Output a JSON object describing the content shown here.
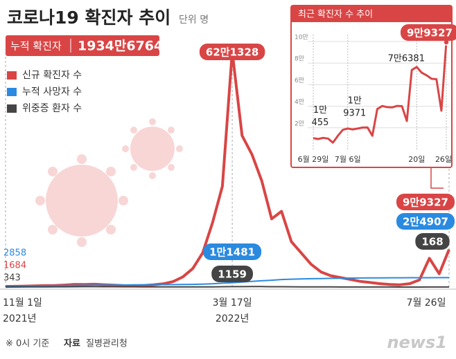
{
  "header": {
    "title": "코로나19 확진자 추이",
    "unit": "단위 명",
    "total_label": "누적 확진자",
    "total_value": "1934만6764"
  },
  "chart_data": [
    {
      "type": "line",
      "categories": [
        "11월 1일",
        null,
        null,
        null,
        null,
        null,
        null,
        null,
        null,
        null,
        null,
        null,
        null,
        null,
        null,
        null,
        null,
        null,
        null,
        null,
        null,
        null,
        null,
        "3월 17일",
        null,
        null,
        null,
        null,
        null,
        null,
        null,
        null,
        null,
        null,
        null,
        null,
        null,
        null,
        null,
        null,
        null,
        null,
        null,
        null,
        null,
        "7월 26일"
      ],
      "x_sublabels": [
        "2021년",
        null,
        null,
        null,
        null,
        null,
        null,
        null,
        null,
        null,
        null,
        null,
        null,
        null,
        null,
        null,
        null,
        null,
        null,
        null,
        null,
        null,
        null,
        "2022년",
        null,
        null,
        null,
        null,
        null,
        null,
        null,
        null,
        null,
        null,
        null,
        null,
        null,
        null,
        null,
        null,
        null,
        null,
        null,
        null,
        null,
        null
      ],
      "ylim": [
        0,
        630000
      ],
      "legend": "top-left",
      "series": [
        {
          "name": "신규 확진자 수",
          "color": "#d94545",
          "values": [
            1684,
            2000,
            2500,
            3100,
            3900,
            4100,
            5300,
            7100,
            7000,
            7400,
            6200,
            5000,
            3800,
            3500,
            4200,
            6100,
            8500,
            14500,
            27000,
            49000,
            90000,
            170000,
            266000,
            621328,
            400000,
            350000,
            280000,
            180000,
            200000,
            120000,
            90000,
            60000,
            40000,
            30000,
            25000,
            20000,
            15000,
            12000,
            9000,
            7000,
            6000,
            9000,
            19000,
            76000,
            35000,
            99327
          ],
          "value_labels": [
            "1684",
            null,
            null,
            null,
            null,
            null,
            null,
            null,
            null,
            null,
            null,
            null,
            null,
            null,
            null,
            null,
            null,
            null,
            null,
            null,
            null,
            null,
            null,
            "62만1328",
            null,
            null,
            null,
            null,
            null,
            null,
            null,
            null,
            null,
            null,
            null,
            null,
            null,
            null,
            null,
            null,
            null,
            null,
            null,
            null,
            null,
            "9만9327"
          ]
        },
        {
          "name": "누적 사망자 수",
          "color": "#2a8ae0",
          "values": [
            2858,
            3000,
            3187,
            3401,
            3658,
            3893,
            4130,
            4456,
            4776,
            5015,
            5245,
            5382,
            5563,
            5781,
            6000,
            6190,
            6350,
            6540,
            6772,
            7045,
            7600,
            8800,
            10140,
            11481,
            13100,
            14900,
            16600,
            18000,
            19900,
            20900,
            21600,
            22100,
            22500,
            23000,
            23400,
            23700,
            24000,
            24200,
            24300,
            24400,
            24500,
            24600,
            24650,
            24720,
            24800,
            24907
          ],
          "value_labels": [
            "2858",
            null,
            null,
            null,
            null,
            null,
            null,
            null,
            null,
            null,
            null,
            null,
            null,
            null,
            null,
            null,
            null,
            null,
            null,
            null,
            null,
            null,
            null,
            "1만1481",
            null,
            null,
            null,
            null,
            null,
            null,
            null,
            null,
            null,
            null,
            null,
            null,
            null,
            null,
            null,
            null,
            null,
            null,
            null,
            null,
            null,
            "2만4907"
          ]
        },
        {
          "name": "위중증 환자 수",
          "color": "#444444",
          "values": [
            343,
            400,
            500,
            550,
            600,
            700,
            800,
            900,
            1050,
            1100,
            1000,
            900,
            800,
            700,
            600,
            500,
            430,
            380,
            290,
            275,
            420,
            600,
            1000,
            1159,
            1100,
            1300,
            1200,
            1000,
            900,
            700,
            500,
            400,
            350,
            300,
            250,
            200,
            180,
            120,
            110,
            100,
            60,
            60,
            80,
            120,
            150,
            168
          ],
          "value_labels": [
            "343",
            null,
            null,
            null,
            null,
            null,
            null,
            null,
            null,
            null,
            null,
            null,
            null,
            null,
            null,
            null,
            null,
            null,
            null,
            null,
            null,
            null,
            null,
            "1159",
            null,
            null,
            null,
            null,
            null,
            null,
            null,
            null,
            null,
            null,
            null,
            null,
            null,
            null,
            null,
            null,
            null,
            null,
            null,
            null,
            null,
            "168"
          ]
        }
      ]
    },
    {
      "type": "line",
      "title": "최근 확진자 수 추이",
      "categories": [
        "6월 29일",
        null,
        null,
        null,
        null,
        null,
        null,
        "7월 6일",
        null,
        null,
        null,
        null,
        null,
        null,
        null,
        null,
        null,
        null,
        null,
        null,
        null,
        "20일",
        null,
        null,
        null,
        null,
        null,
        "26일"
      ],
      "ylim": [
        0,
        100000
      ],
      "yticks": [
        {
          "value": 20000,
          "label": "2만"
        },
        {
          "value": 40000,
          "label": "4만"
        },
        {
          "value": 60000,
          "label": "6만"
        },
        {
          "value": 80000,
          "label": "8만"
        },
        {
          "value": 100000,
          "label": "10만"
        }
      ],
      "grid": true,
      "series": [
        {
          "color": "#d94545",
          "values": [
            10455,
            9591,
            10715,
            10059,
            6253,
            12693,
            18147,
            19371,
            18511,
            19323,
            20286,
            20410,
            12693,
            37360,
            40266,
            39196,
            38882,
            40342,
            40059,
            26299,
            73582,
            76381,
            71170,
            68632,
            65433,
            65064,
            35883,
            99327
          ],
          "value_labels": [
            [
              "1만",
              "455"
            ],
            null,
            null,
            null,
            null,
            null,
            null,
            [
              "1만",
              "9371"
            ],
            null,
            null,
            null,
            null,
            null,
            null,
            null,
            null,
            null,
            null,
            null,
            null,
            null,
            "7만6381",
            null,
            null,
            null,
            null,
            null,
            "9만9327"
          ]
        }
      ]
    }
  ],
  "footer": {
    "note": "※ 0시 기준",
    "source_label": "자료",
    "source": "질병관리청",
    "logo": "news1"
  }
}
